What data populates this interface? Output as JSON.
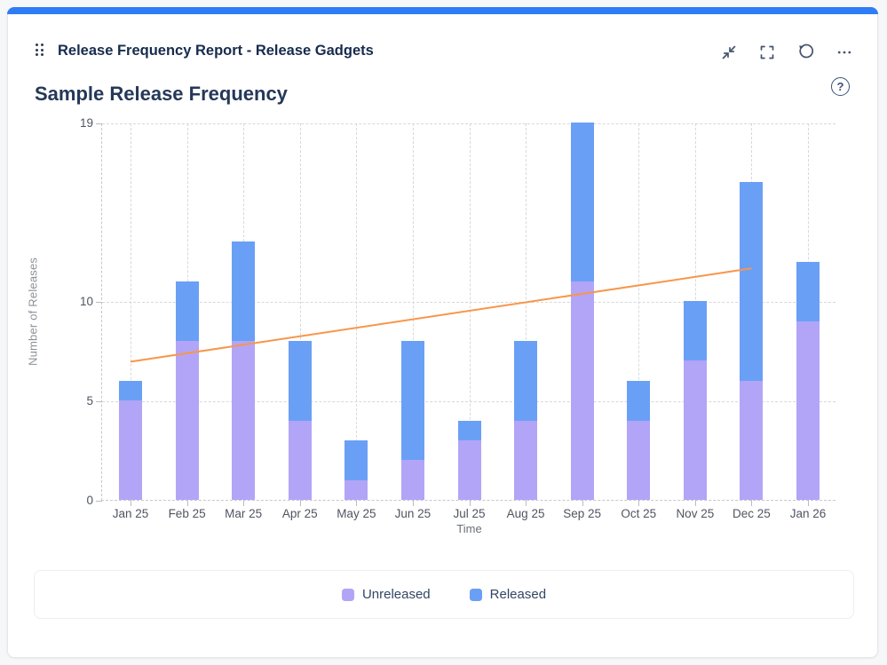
{
  "window": {
    "header": {
      "title": "Release Frequency Report - Release Gadgets",
      "icons": [
        "drag-handle",
        "collapse-arrows",
        "fullscreen-brackets",
        "refresh-arrow",
        "ellipsis"
      ],
      "help_glyph": "?"
    },
    "accent_color": "#2E7DF6"
  },
  "chart_data": {
    "type": "bar",
    "stacked": true,
    "title": "Sample Release Frequency",
    "xlabel": "Time",
    "ylabel": "Number of Releases",
    "categories": [
      "Jan 25",
      "Feb 25",
      "Mar 25",
      "Apr 25",
      "May 25",
      "Jun 25",
      "Jul 25",
      "Aug 25",
      "Sep 25",
      "Oct 25",
      "Nov 25",
      "Dec 25",
      "Jan 26"
    ],
    "series": [
      {
        "name": "Unreleased",
        "color": "#B2A5F7",
        "values": [
          5,
          8,
          8,
          4,
          1,
          2,
          3,
          4,
          11,
          4,
          7,
          6,
          9
        ]
      },
      {
        "name": "Released",
        "color": "#6A9FF6",
        "values": [
          1,
          3,
          5,
          4,
          2,
          6,
          1,
          4,
          8,
          2,
          3,
          10,
          3
        ]
      }
    ],
    "totals": [
      6,
      11,
      13,
      8,
      3,
      8,
      4,
      8,
      19,
      6,
      10,
      16,
      12
    ],
    "trend_line": {
      "color": "#F8964A",
      "start_category": "Jan 25",
      "start_value": 7.0,
      "end_category": "Dec 25",
      "end_value": 11.7
    },
    "y_ticks": [
      0,
      5,
      10,
      19
    ],
    "ylim": [
      0,
      19
    ],
    "grid": "dashed",
    "legend_position": "bottom",
    "legend": [
      "Unreleased",
      "Released"
    ]
  },
  "colors": {
    "card_background": "#FFFFFF",
    "page_background": "#F6F7F8",
    "header_text": "#172B4D",
    "chart_title_text": "#253858",
    "icon": "#44546F",
    "gridline": "#D7D8DA",
    "tick_label": "#4F5560",
    "axis_title": "#8C9197"
  }
}
